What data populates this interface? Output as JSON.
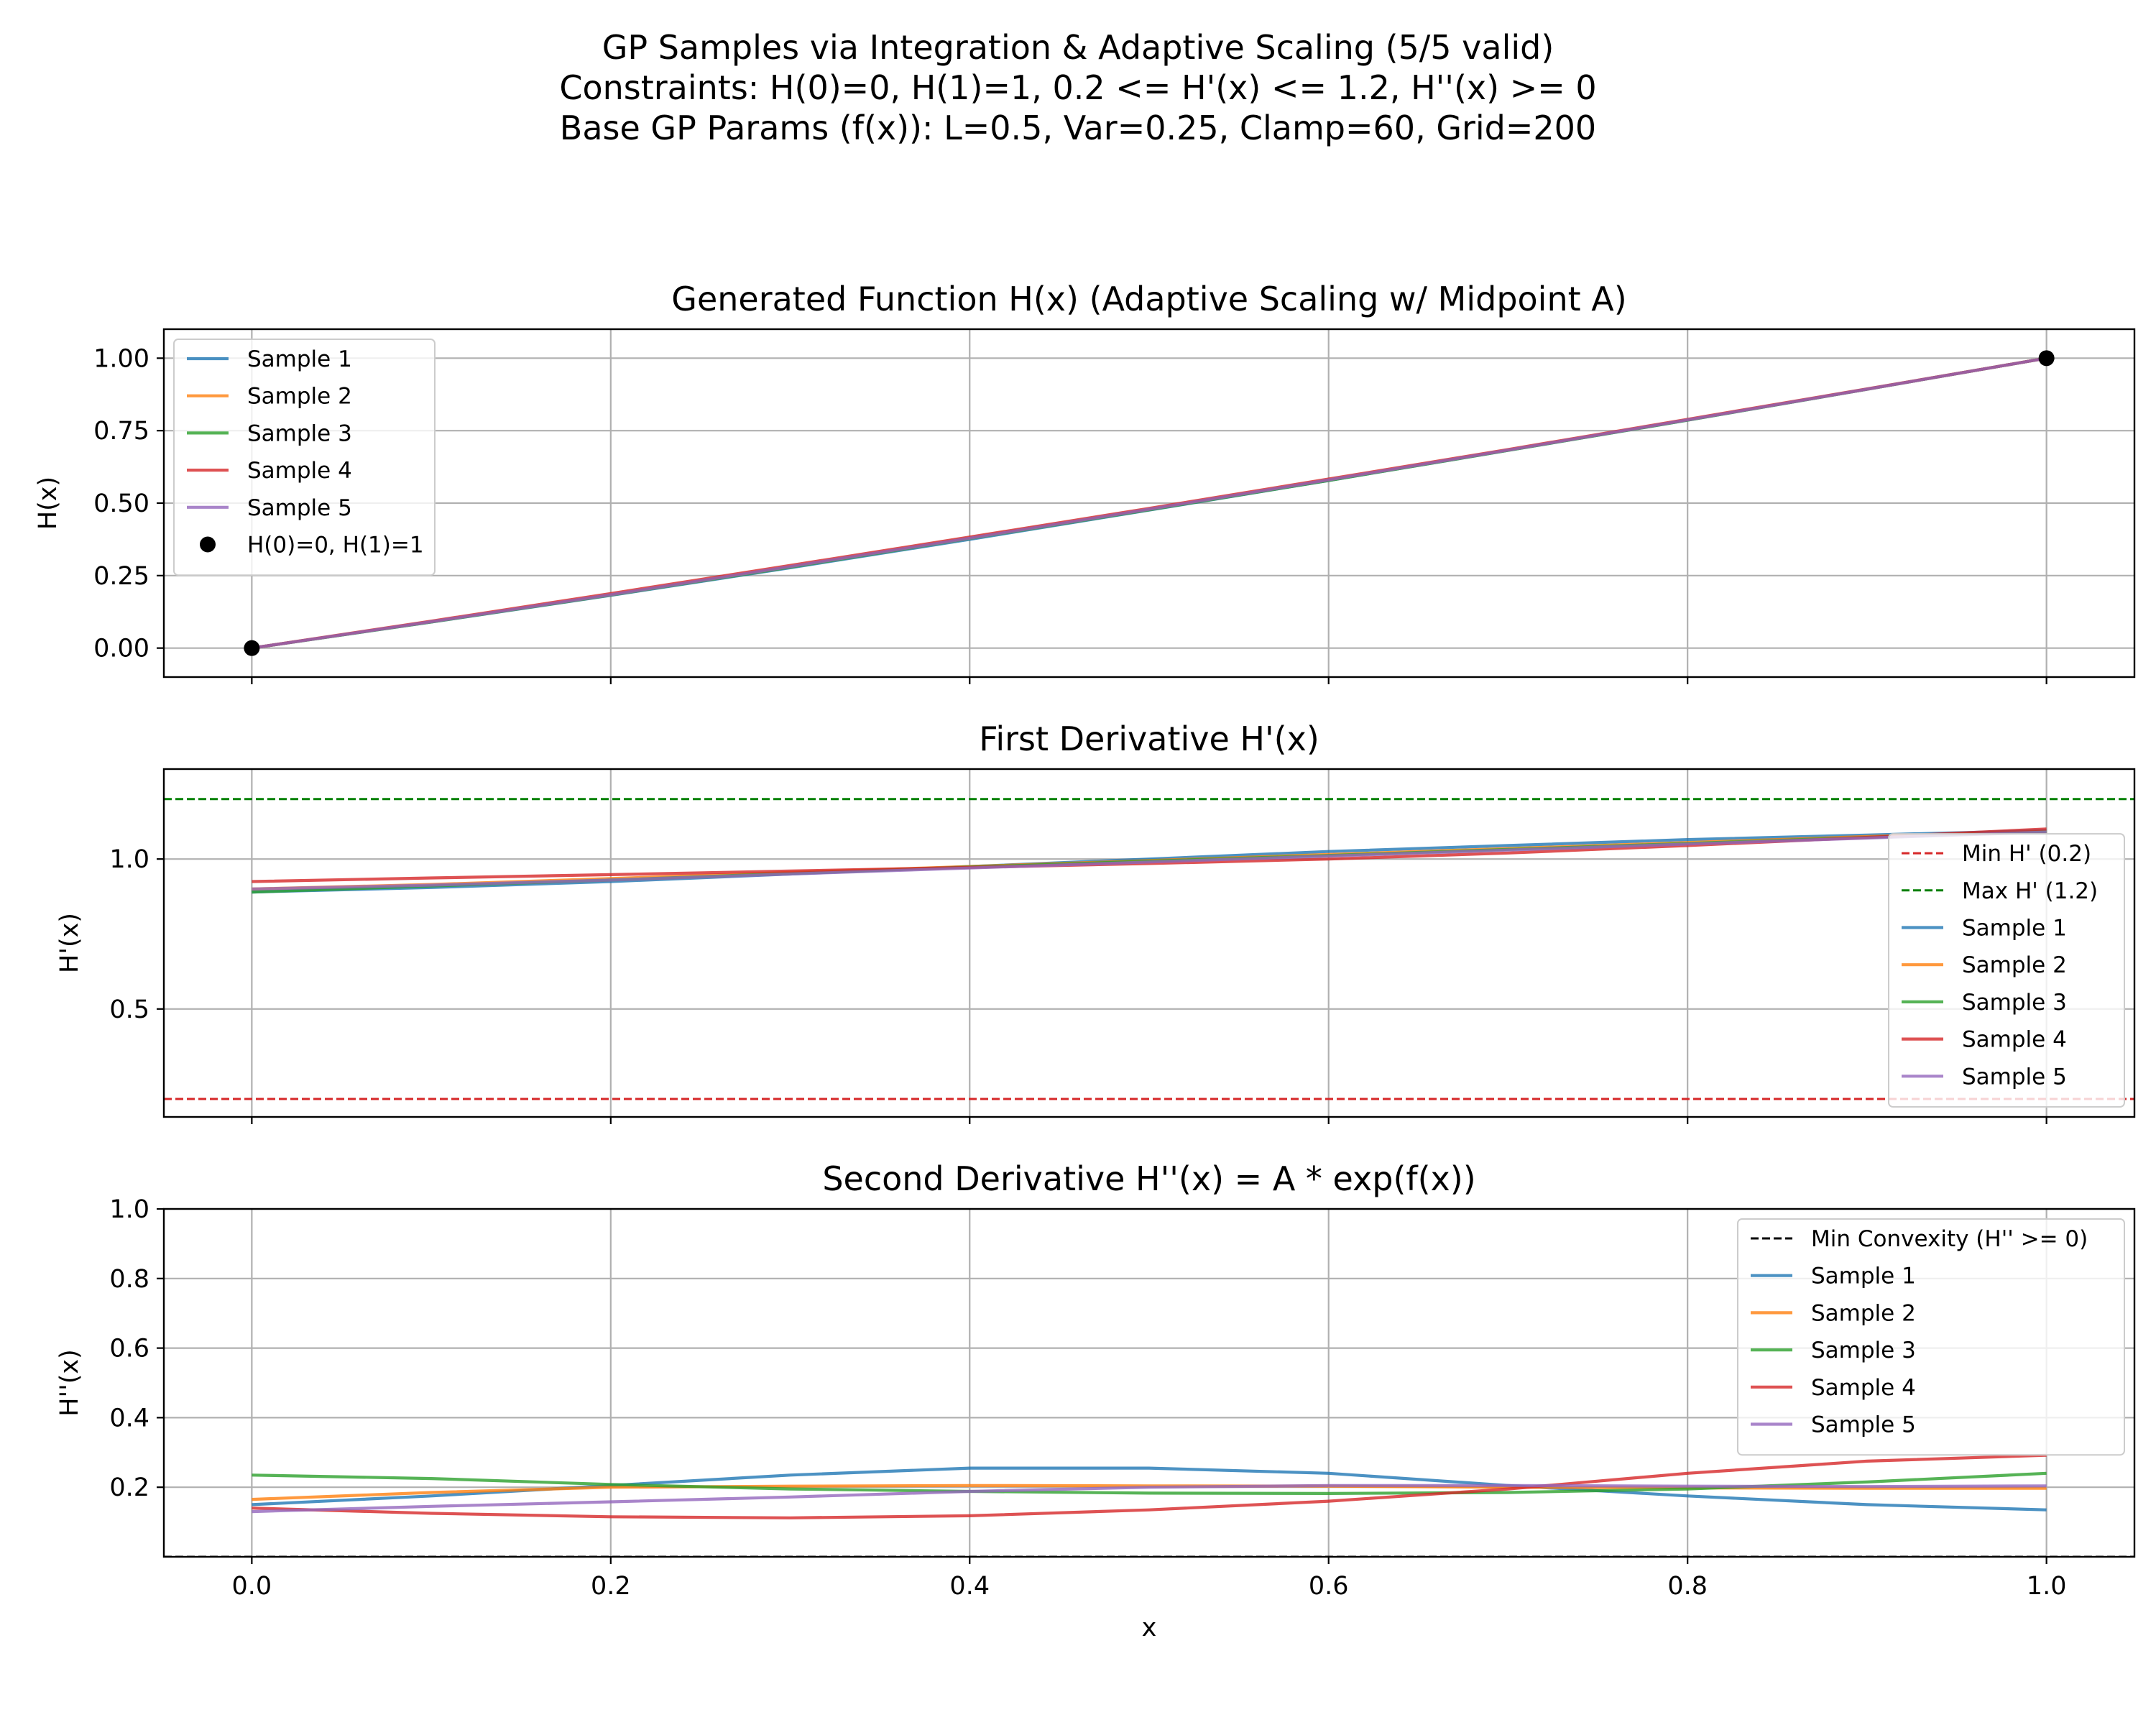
{
  "figure": {
    "suptitle": [
      "GP Samples via Integration & Adaptive Scaling (5/5 valid)",
      "Constraints: H(0)=0, H(1)=1, 0.2 <= H'(x) <= 1.2, H''(x) >= 0",
      "Base GP Params (f(x)): L=0.5, Var=0.25, Clamp=60, Grid=200"
    ]
  },
  "colors": {
    "sample1": "#1f77b4",
    "sample2": "#ff7f0e",
    "sample3": "#2ca02c",
    "sample4": "#d62728",
    "sample5": "#9467bd",
    "min_line": "#d62728",
    "max_line": "#008000",
    "convexity_line": "#000000",
    "grid": "#b0b0b0"
  },
  "chart_data": [
    {
      "type": "line",
      "title": "Generated Function H(x) (Adaptive Scaling w/ Midpoint A)",
      "xlabel": "",
      "ylabel": "H(x)",
      "xlim": [
        -0.049,
        1.049
      ],
      "ylim": [
        -0.1,
        1.1
      ],
      "xticks": [
        0.0,
        0.2,
        0.4,
        0.6,
        0.8,
        1.0
      ],
      "xtick_labels_visible": false,
      "yticks": [
        0.0,
        0.25,
        0.5,
        0.75,
        1.0
      ],
      "ytick_labels": [
        "0.00",
        "0.25",
        "0.50",
        "0.75",
        "1.00"
      ],
      "grid": true,
      "legend": "upper left",
      "x": [
        0.0,
        0.1,
        0.2,
        0.3,
        0.4,
        0.5,
        0.6,
        0.7,
        0.8,
        0.9,
        1.0
      ],
      "series": [
        {
          "name": "Sample 1",
          "values": [
            0.0,
            0.09,
            0.182,
            0.277,
            0.375,
            0.476,
            0.578,
            0.682,
            0.786,
            0.893,
            1.0
          ]
        },
        {
          "name": "Sample 2",
          "values": [
            0.0,
            0.091,
            0.184,
            0.281,
            0.38,
            0.479,
            0.58,
            0.683,
            0.787,
            0.893,
            1.0
          ]
        },
        {
          "name": "Sample 3",
          "values": [
            0.0,
            0.09,
            0.183,
            0.279,
            0.378,
            0.477,
            0.578,
            0.682,
            0.786,
            0.893,
            1.0
          ]
        },
        {
          "name": "Sample 4",
          "values": [
            0.0,
            0.093,
            0.188,
            0.285,
            0.383,
            0.482,
            0.583,
            0.685,
            0.789,
            0.894,
            1.0
          ]
        },
        {
          "name": "Sample 5",
          "values": [
            0.0,
            0.091,
            0.184,
            0.281,
            0.379,
            0.479,
            0.58,
            0.683,
            0.787,
            0.893,
            1.0
          ]
        }
      ],
      "points": {
        "name": "H(0)=0, H(1)=1",
        "x": [
          0.0,
          1.0
        ],
        "y": [
          0.0,
          1.0
        ]
      }
    },
    {
      "type": "line",
      "title": "First Derivative H'(x)",
      "xlabel": "",
      "ylabel": "H'(x)",
      "xlim": [
        -0.049,
        1.049
      ],
      "ylim": [
        0.14,
        1.3
      ],
      "xticks": [
        0.0,
        0.2,
        0.4,
        0.6,
        0.8,
        1.0
      ],
      "xtick_labels_visible": false,
      "yticks": [
        0.5,
        1.0
      ],
      "ytick_labels": [
        "0.5",
        "1.0"
      ],
      "grid": true,
      "legend": "lower right",
      "hlines": [
        {
          "name": "Min H' (0.2)",
          "y": 0.2,
          "style": "dashed",
          "color": "#d62728"
        },
        {
          "name": "Max H' (1.2)",
          "y": 1.2,
          "style": "dashed",
          "color": "#008000"
        }
      ],
      "x": [
        0.0,
        0.1,
        0.2,
        0.3,
        0.4,
        0.5,
        0.6,
        0.7,
        0.8,
        0.9,
        1.0
      ],
      "series": [
        {
          "name": "Sample 1",
          "values": [
            0.89,
            0.905,
            0.925,
            0.95,
            0.975,
            1.0,
            1.025,
            1.045,
            1.065,
            1.08,
            1.095
          ]
        },
        {
          "name": "Sample 2",
          "values": [
            0.9,
            0.915,
            0.935,
            0.955,
            0.975,
            0.995,
            1.015,
            1.035,
            1.055,
            1.075,
            1.09
          ]
        },
        {
          "name": "Sample 3",
          "values": [
            0.89,
            0.91,
            0.93,
            0.952,
            0.973,
            0.993,
            1.012,
            1.032,
            1.052,
            1.072,
            1.092
          ]
        },
        {
          "name": "Sample 4",
          "values": [
            0.925,
            0.937,
            0.948,
            0.96,
            0.972,
            0.985,
            1.0,
            1.02,
            1.045,
            1.072,
            1.1
          ]
        },
        {
          "name": "Sample 5",
          "values": [
            0.9,
            0.913,
            0.93,
            0.95,
            0.97,
            0.99,
            1.01,
            1.03,
            1.05,
            1.07,
            1.09
          ]
        }
      ]
    },
    {
      "type": "line",
      "title": "Second Derivative H''(x) = A * exp(f(x))",
      "xlabel": "x",
      "ylabel": "H''(x)",
      "xlim": [
        -0.049,
        1.049
      ],
      "ylim": [
        0.0,
        1.0
      ],
      "xticks": [
        0.0,
        0.2,
        0.4,
        0.6,
        0.8,
        1.0
      ],
      "xtick_labels": [
        "0.0",
        "0.2",
        "0.4",
        "0.6",
        "0.8",
        "1.0"
      ],
      "yticks": [
        0.2,
        0.4,
        0.6,
        0.8,
        1.0
      ],
      "ytick_labels": [
        "0.2",
        "0.4",
        "0.6",
        "0.8",
        "1.0"
      ],
      "grid": true,
      "legend": "upper right",
      "hlines": [
        {
          "name": "Min Convexity (H'' >= 0)",
          "y": 0.0,
          "style": "dashed",
          "color": "#000000"
        }
      ],
      "x": [
        0.0,
        0.1,
        0.2,
        0.3,
        0.4,
        0.5,
        0.6,
        0.7,
        0.8,
        0.9,
        1.0
      ],
      "series": [
        {
          "name": "Sample 1",
          "values": [
            0.15,
            0.175,
            0.205,
            0.235,
            0.255,
            0.255,
            0.24,
            0.205,
            0.175,
            0.15,
            0.135
          ]
        },
        {
          "name": "Sample 2",
          "values": [
            0.165,
            0.185,
            0.2,
            0.203,
            0.205,
            0.204,
            0.203,
            0.2,
            0.198,
            0.197,
            0.197
          ]
        },
        {
          "name": "Sample 3",
          "values": [
            0.235,
            0.225,
            0.208,
            0.195,
            0.188,
            0.183,
            0.182,
            0.185,
            0.195,
            0.215,
            0.24
          ]
        },
        {
          "name": "Sample 4",
          "values": [
            0.14,
            0.125,
            0.115,
            0.112,
            0.118,
            0.135,
            0.16,
            0.195,
            0.24,
            0.275,
            0.292
          ]
        },
        {
          "name": "Sample 5",
          "values": [
            0.13,
            0.145,
            0.158,
            0.172,
            0.188,
            0.2,
            0.205,
            0.205,
            0.203,
            0.202,
            0.204
          ]
        }
      ]
    }
  ]
}
